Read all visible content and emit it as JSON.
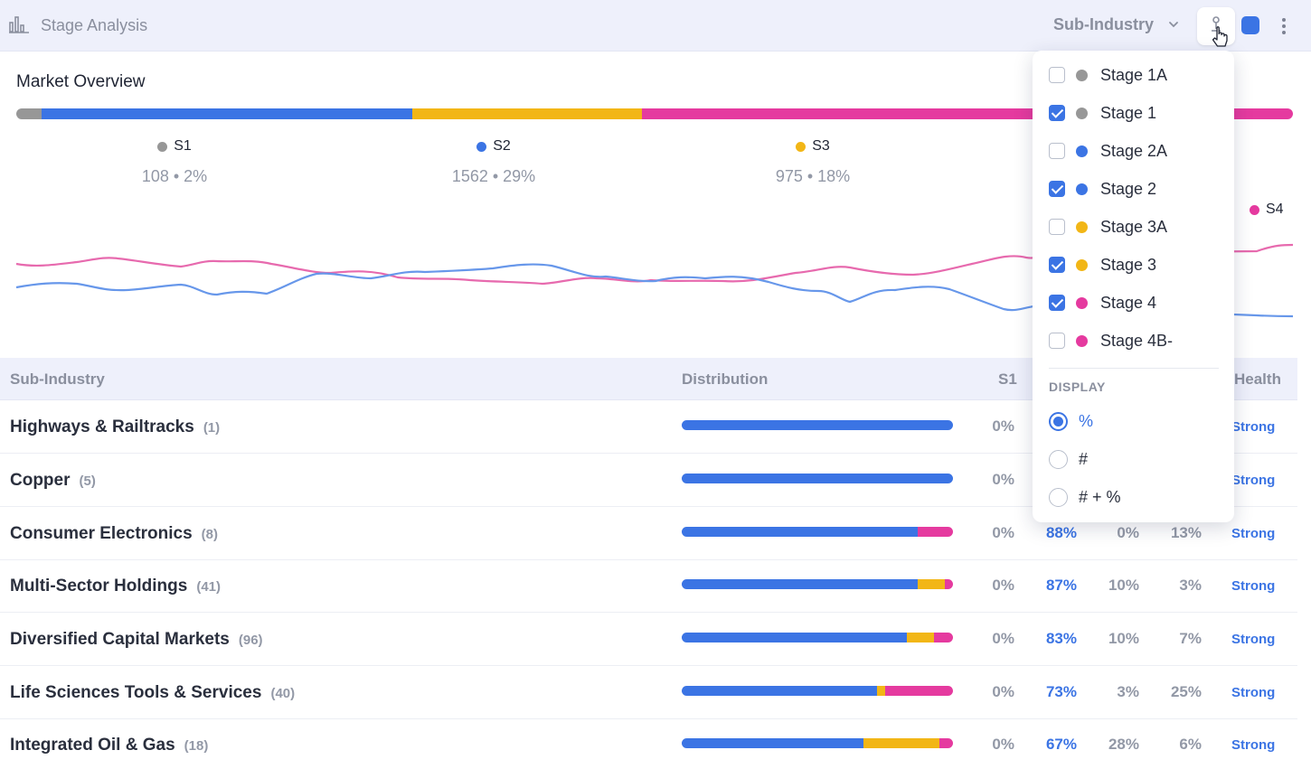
{
  "header": {
    "title": "Stage Analysis",
    "title_icon": "bar-chart-icon",
    "group_by": "Sub-Industry",
    "filter_icon": "stage-filter-icon",
    "color_swatch": "#3b74e4",
    "more_icon": "more-vertical-icon"
  },
  "overview": {
    "title": "Market Overview",
    "legend": [
      {
        "name": "S1",
        "value": "108 • 2%",
        "color": "#979797"
      },
      {
        "name": "S2",
        "value": "1562 • 29%",
        "color": "#3b74e4"
      },
      {
        "name": "S3",
        "value": "975 • 18%",
        "color": "#f2b616"
      },
      {
        "name": "S4",
        "value": "",
        "color": "#e53a9f"
      }
    ]
  },
  "chart_data": {
    "type": "bar",
    "stacked_series": [
      {
        "name": "S1",
        "percent": 2,
        "color": "#979797"
      },
      {
        "name": "S2",
        "percent": 29,
        "color": "#3b74e4"
      },
      {
        "name": "S3",
        "percent": 18,
        "color": "#f2b616"
      },
      {
        "name": "S4",
        "percent": 51,
        "color": "#e53a9f"
      }
    ],
    "trend_lines": [
      {
        "name": "S4",
        "color": "#e76aae"
      },
      {
        "name": "S2",
        "color": "#6797ea"
      }
    ]
  },
  "table": {
    "headers": {
      "name": "Sub-Industry",
      "distribution": "Distribution",
      "s1": "S1",
      "health": "Health"
    },
    "rows": [
      {
        "name": "Highways & Railtracks",
        "count": "(1)",
        "dist": [
          0,
          100,
          0,
          0
        ],
        "s1": "0%",
        "s2": "",
        "s3": "",
        "s4": "",
        "health": "Strong"
      },
      {
        "name": "Copper",
        "count": "(5)",
        "dist": [
          0,
          100,
          0,
          0
        ],
        "s1": "0%",
        "s2": "",
        "s3": "",
        "s4": "",
        "health": "Strong"
      },
      {
        "name": "Consumer Electronics",
        "count": "(8)",
        "dist": [
          0,
          88,
          0,
          13
        ],
        "s1": "0%",
        "s2": "88%",
        "s3": "0%",
        "s4": "13%",
        "health": "Strong"
      },
      {
        "name": "Multi-Sector Holdings",
        "count": "(41)",
        "dist": [
          0,
          87,
          10,
          3
        ],
        "s1": "0%",
        "s2": "87%",
        "s3": "10%",
        "s4": "3%",
        "health": "Strong"
      },
      {
        "name": "Diversified Capital Markets",
        "count": "(96)",
        "dist": [
          0,
          83,
          10,
          7
        ],
        "s1": "0%",
        "s2": "83%",
        "s3": "10%",
        "s4": "7%",
        "health": "Strong"
      },
      {
        "name": "Life Sciences Tools & Services",
        "count": "(40)",
        "dist": [
          0,
          72,
          3,
          25
        ],
        "s1": "0%",
        "s2": "73%",
        "s3": "3%",
        "s4": "25%",
        "health": "Strong"
      },
      {
        "name": "Integrated Oil & Gas",
        "count": "(18)",
        "dist": [
          0,
          67,
          28,
          5
        ],
        "s1": "0%",
        "s2": "67%",
        "s3": "28%",
        "s4": "6%",
        "health": "Strong"
      }
    ]
  },
  "dropdown": {
    "stages": [
      {
        "label": "Stage 1A",
        "checked": false,
        "color": "#979797"
      },
      {
        "label": "Stage 1",
        "checked": true,
        "color": "#979797"
      },
      {
        "label": "Stage 2A",
        "checked": false,
        "color": "#3b74e4"
      },
      {
        "label": "Stage 2",
        "checked": true,
        "color": "#3b74e4"
      },
      {
        "label": "Stage 3A",
        "checked": false,
        "color": "#f2b616"
      },
      {
        "label": "Stage 3",
        "checked": true,
        "color": "#f2b616"
      },
      {
        "label": "Stage 4",
        "checked": true,
        "color": "#e53a9f"
      },
      {
        "label": "Stage 4B-",
        "checked": false,
        "color": "#e53a9f"
      }
    ],
    "display_label": "DISPLAY",
    "display_options": [
      {
        "label": "%",
        "selected": true
      },
      {
        "label": "#",
        "selected": false
      },
      {
        "label": "# + %",
        "selected": false
      }
    ]
  }
}
